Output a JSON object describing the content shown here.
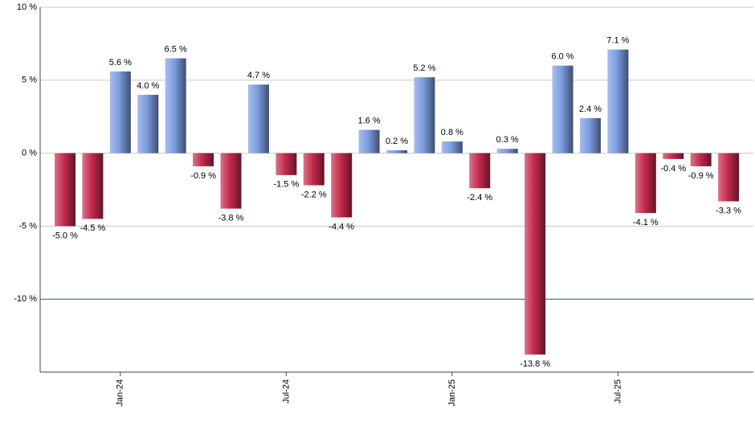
{
  "chart_data": {
    "type": "bar",
    "categories": [
      null,
      null,
      "Jan-24",
      null,
      null,
      null,
      null,
      null,
      "Jul-24",
      null,
      null,
      null,
      null,
      null,
      "Jan-25",
      null,
      null,
      null,
      null,
      null,
      "Jul-25",
      null,
      null,
      null,
      null
    ],
    "values": [
      -5.0,
      -4.5,
      5.6,
      4.0,
      6.5,
      -0.9,
      -3.8,
      4.7,
      -1.5,
      -2.2,
      -4.4,
      1.6,
      0.2,
      5.2,
      0.8,
      -2.4,
      0.3,
      -13.8,
      6.0,
      2.4,
      7.1,
      -4.1,
      -0.4,
      -0.9,
      -3.3
    ],
    "value_labels": [
      "-5.0 %",
      "-4.5 %",
      "5.6 %",
      "4.0 %",
      "6.5 %",
      "-0.9 %",
      "-3.8 %",
      "4.7 %",
      "-1.5 %",
      "-2.2 %",
      "-4.4 %",
      "1.6 %",
      "0.2 %",
      "5.2 %",
      "0.8 %",
      "-2.4 %",
      "0.3 %",
      "-13.8 %",
      "6.0 %",
      "2.4 %",
      "7.1 %",
      "-4.1 %",
      "-0.4 %",
      "-0.9 %",
      "-3.3 %"
    ],
    "positive_color": "#7b9be0",
    "negative_color": "#c42a4c",
    "ylim": [
      -15,
      10
    ],
    "yticks": [
      {
        "value": 10,
        "label": "10 %"
      },
      {
        "value": 5,
        "label": "5 %"
      },
      {
        "value": 0,
        "label": "0 %"
      },
      {
        "value": -5,
        "label": "-5 %"
      },
      {
        "value": -10,
        "label": "-10 %"
      }
    ],
    "grid": true,
    "reference_line": {
      "value": -10,
      "color": "#2e7d32"
    }
  }
}
